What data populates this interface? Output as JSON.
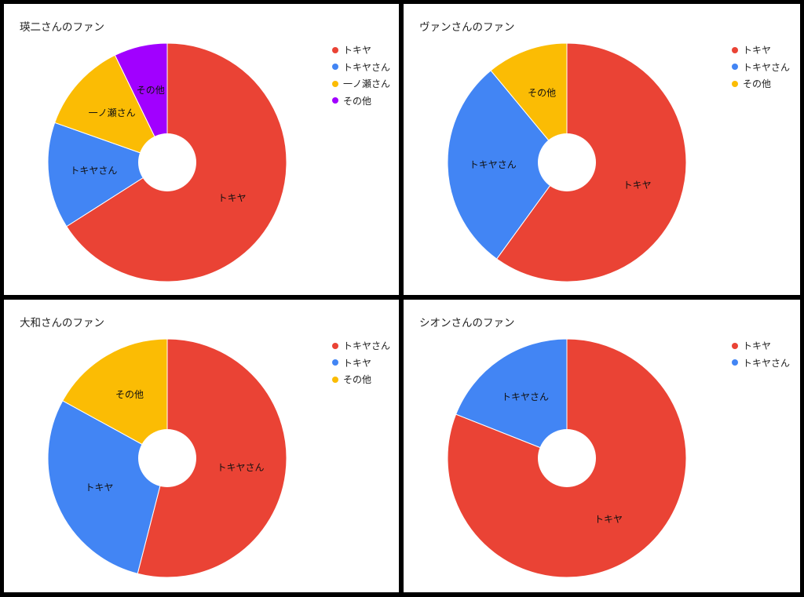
{
  "colors": {
    "red": "#EA4335",
    "blue": "#4285F4",
    "yellow": "#FBBC04",
    "purple": "#A100FF"
  },
  "chart_data": [
    {
      "type": "pie",
      "title": "瑛二さんのファン",
      "legend_position": "right",
      "donut": true,
      "slices": [
        {
          "label": "トキヤ",
          "value": 64,
          "color": "#EA4335"
        },
        {
          "label": "トキヤさん",
          "value": 14,
          "color": "#4285F4"
        },
        {
          "label": "一ノ瀬さん",
          "value": 12,
          "color": "#FBBC04"
        },
        {
          "label": "その他",
          "value": 7,
          "color": "#A100FF"
        }
      ]
    },
    {
      "type": "pie",
      "title": "ヴァンさんのファン",
      "legend_position": "right",
      "donut": true,
      "slices": [
        {
          "label": "トキヤ",
          "value": 60,
          "color": "#EA4335"
        },
        {
          "label": "トキヤさん",
          "value": 29,
          "color": "#4285F4"
        },
        {
          "label": "その他",
          "value": 11,
          "color": "#FBBC04"
        }
      ]
    },
    {
      "type": "pie",
      "title": "大和さんのファン",
      "legend_position": "right",
      "donut": true,
      "slices": [
        {
          "label": "トキヤさん",
          "value": 54,
          "color": "#EA4335"
        },
        {
          "label": "トキヤ",
          "value": 29,
          "color": "#4285F4"
        },
        {
          "label": "その他",
          "value": 17,
          "color": "#FBBC04"
        }
      ]
    },
    {
      "type": "pie",
      "title": "シオンさんのファン",
      "legend_position": "right",
      "donut": true,
      "slices": [
        {
          "label": "トキヤ",
          "value": 81,
          "color": "#EA4335"
        },
        {
          "label": "トキヤさん",
          "value": 19,
          "color": "#4285F4"
        }
      ]
    }
  ]
}
